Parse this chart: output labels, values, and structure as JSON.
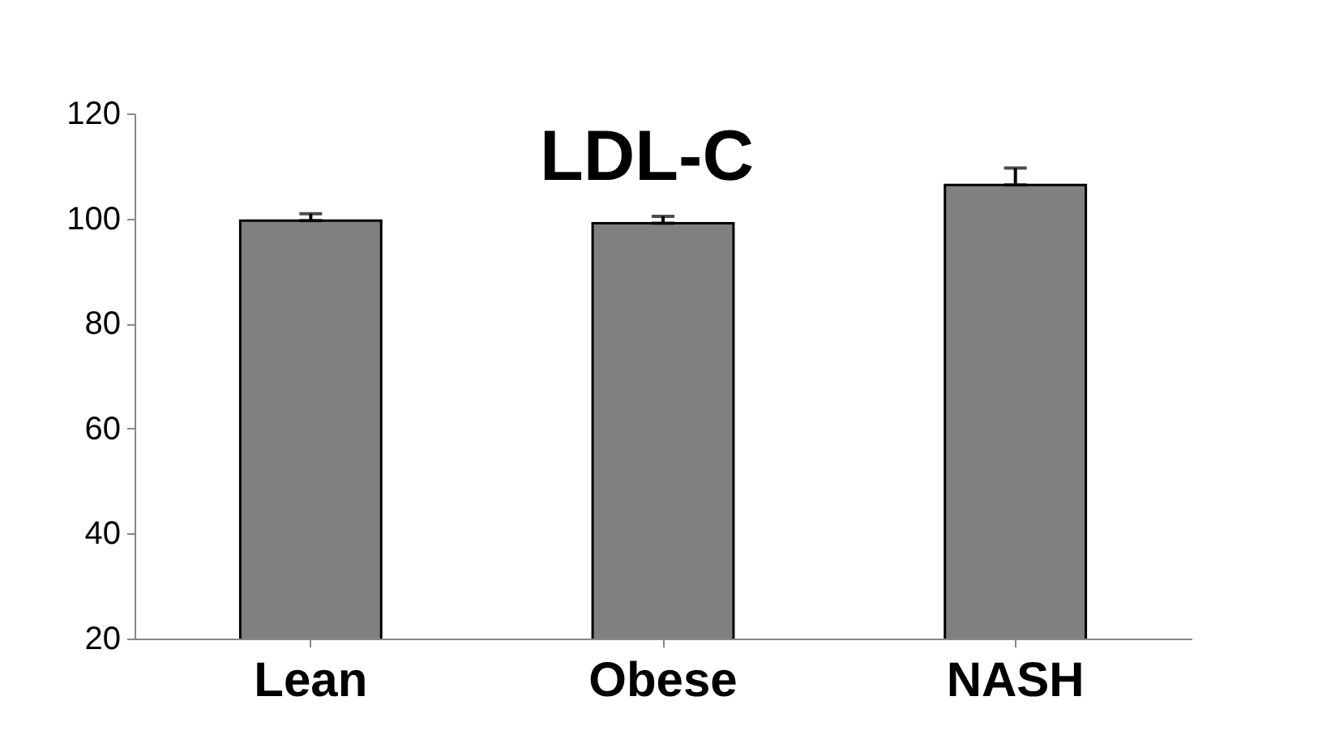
{
  "chart_data": {
    "type": "bar",
    "title": "LDL-C",
    "categories": [
      "Lean",
      "Obese",
      "NASH"
    ],
    "values": [
      99.6,
      99.1,
      106.4
    ],
    "errors": [
      [
        99.6,
        100.9
      ],
      [
        99.1,
        100.4
      ],
      [
        106.4,
        109.6
      ]
    ],
    "color": "#808080",
    "ylim": [
      20,
      120
    ],
    "yticks": [
      20,
      40,
      60,
      80,
      100,
      120
    ],
    "grid": false
  }
}
